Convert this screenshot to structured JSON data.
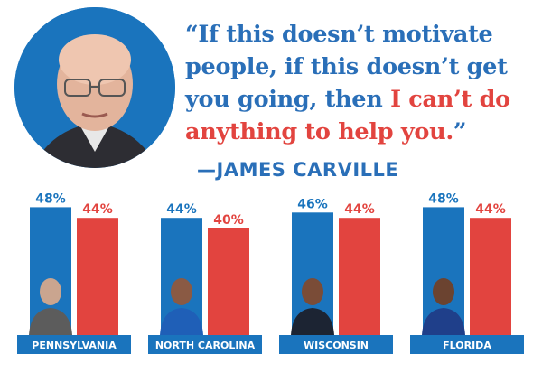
{
  "quote": {
    "line1": "“If this doesn’t motivate",
    "line2": "people, if this doesn’t get",
    "line3": "you going, then ",
    "line3_highlight": "I can’t do",
    "line4_highlight": "anything to help you.",
    "line4_end": "”"
  },
  "attribution": "—JAMES CARVILLE",
  "colors": {
    "blue": "#1a74bd",
    "red": "#e2443f"
  },
  "chart_data": {
    "type": "bar",
    "categories": [
      "PENNSYLVANIA",
      "NORTH CAROLINA",
      "WISCONSIN",
      "FLORIDA"
    ],
    "series": [
      {
        "values": [
          48,
          44,
          46,
          48
        ]
      },
      {
        "values": [
          44,
          40,
          44,
          44
        ]
      }
    ],
    "value_format": "%"
  }
}
